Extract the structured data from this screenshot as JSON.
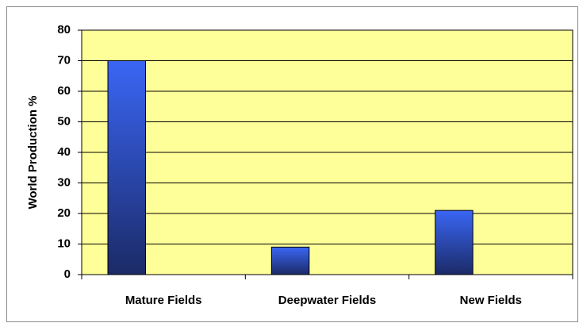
{
  "chart_data": {
    "type": "bar",
    "y_label": "World Production %",
    "categories": [
      "Mature Fields",
      "Deepwater Fields",
      "New Fields"
    ],
    "values": [
      70,
      9,
      21
    ],
    "color": "#3a66f5",
    "background": "#ffff99",
    "ylim": [
      0,
      80
    ],
    "yticks": [
      0,
      10,
      20,
      30,
      40,
      50,
      60,
      70,
      80
    ],
    "grid": true
  }
}
